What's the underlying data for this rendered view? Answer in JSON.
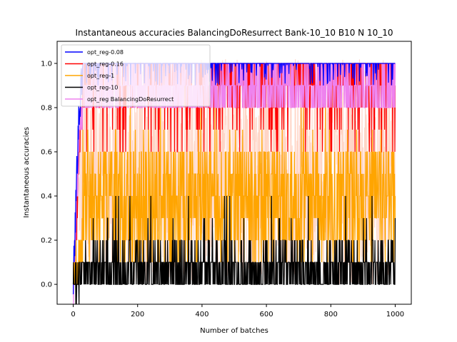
{
  "chart_data": {
    "type": "line",
    "title": "Instantaneous accuracies BalancingDoResurrect Bank-10_10 B10 N 10_10",
    "xlabel": "Number of batches",
    "ylabel": "Instantaneous accuracies",
    "xlim": [
      -50,
      1050
    ],
    "ylim": [
      -0.09,
      1.1
    ],
    "xticks": [
      0,
      200,
      400,
      600,
      800,
      1000
    ],
    "xtick_labels": [
      "0",
      "200",
      "400",
      "600",
      "800",
      "1000"
    ],
    "yticks": [
      0.0,
      0.2,
      0.4,
      0.6,
      0.8,
      1.0
    ],
    "ytick_labels": [
      "0.0",
      "0.2",
      "0.4",
      "0.6",
      "0.8",
      "1.0"
    ],
    "grid": false,
    "legend_position": "top-left",
    "n_points": 1001,
    "series": [
      {
        "name": "opt_reg-0.08",
        "color": "#0000ff",
        "description": "Rises from 0 to ~1.0 within the first ~30 batches and stays near 1.0 with dips down to about 0.85-0.9.",
        "anchor_points": [
          [
            0,
            0.0
          ],
          [
            5,
            0.2
          ],
          [
            15,
            0.7
          ],
          [
            30,
            1.0
          ],
          [
            100,
            1.0
          ],
          [
            300,
            1.0
          ],
          [
            500,
            1.0
          ],
          [
            700,
            1.0
          ],
          [
            900,
            1.0
          ],
          [
            1000,
            0.95
          ]
        ],
        "range_after_warmup": [
          0.85,
          1.0
        ]
      },
      {
        "name": "opt_reg-0.16",
        "color": "#ff0000",
        "description": "Rises quickly to the 0.7-1.0 band and fluctuates, frequent drops to ~0.6-0.8, occasional drops to ~0.5.",
        "anchor_points": [
          [
            0,
            0.0
          ],
          [
            10,
            0.3
          ],
          [
            25,
            0.8
          ],
          [
            100,
            0.95
          ],
          [
            300,
            0.9
          ],
          [
            500,
            0.9
          ],
          [
            700,
            0.85
          ],
          [
            850,
            0.5
          ],
          [
            1000,
            0.9
          ]
        ],
        "range_after_warmup": [
          0.55,
          1.0
        ]
      },
      {
        "name": "opt_reg-1",
        "color": "#ffa500",
        "description": "Noisy, fluctuating between about 0.1 and 0.7 throughout, with occasional spikes near 0.8.",
        "anchor_points": [
          [
            0,
            0.0
          ],
          [
            30,
            0.2
          ],
          [
            100,
            0.35
          ],
          [
            300,
            0.35
          ],
          [
            500,
            0.35
          ],
          [
            700,
            0.35
          ],
          [
            900,
            0.35
          ],
          [
            1000,
            0.3
          ]
        ],
        "range_after_warmup": [
          0.05,
          0.8
        ]
      },
      {
        "name": "opt_reg-10",
        "color": "#000000",
        "description": "Mostly between 0.0 and 0.2, occasional spikes to 0.3-0.4.",
        "anchor_points": [
          [
            0,
            0.0
          ],
          [
            50,
            0.1
          ],
          [
            200,
            0.1
          ],
          [
            400,
            0.1
          ],
          [
            600,
            0.1
          ],
          [
            800,
            0.1
          ],
          [
            1000,
            0.05
          ]
        ],
        "range_after_warmup": [
          0.0,
          0.4
        ]
      },
      {
        "name": "opt_reg BalancingDoResurrect",
        "color": "#ee82ee",
        "description": "Rises quickly to ~0.8-1.0, stays mostly between 0.75 and 1.0 with dense oscillation.",
        "anchor_points": [
          [
            0,
            0.0
          ],
          [
            10,
            0.3
          ],
          [
            20,
            0.7
          ],
          [
            50,
            0.9
          ],
          [
            200,
            0.95
          ],
          [
            400,
            0.92
          ],
          [
            600,
            0.9
          ],
          [
            800,
            0.88
          ],
          [
            1000,
            0.95
          ]
        ],
        "range_after_warmup": [
          0.7,
          1.02
        ]
      }
    ],
    "background_bands": [
      {
        "color": "#ffd0c0",
        "description": "light red/orange noisy background traces spanning roughly 0.0-1.0"
      },
      {
        "color": "#fbe0f8",
        "description": "light pink shading near the top between ~0.8 and 1.0"
      }
    ]
  }
}
